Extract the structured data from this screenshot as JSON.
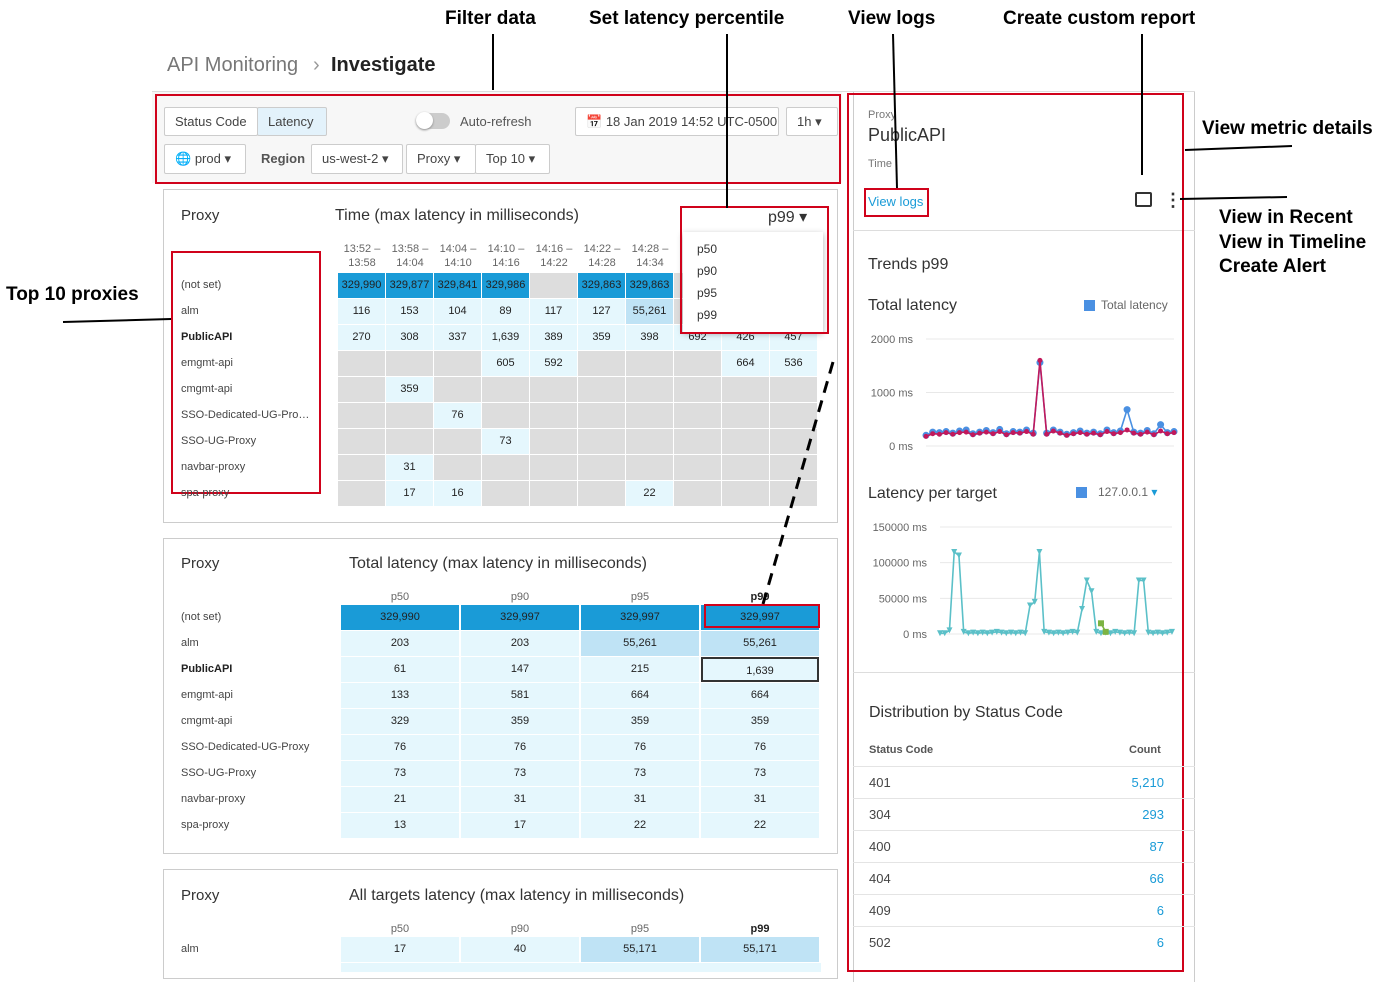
{
  "annotations": [
    "Filter data",
    "Set latency percentile",
    "View logs",
    "Create custom report",
    "View metric details",
    "View in Recent",
    "View in Timeline",
    "Create Alert",
    "Top 10 proxies"
  ],
  "breadcrumb": {
    "parent": "API Monitoring",
    "current": "Investigate"
  },
  "filters": {
    "tabs": [
      "Status Code",
      "Latency"
    ],
    "auto_refresh": "Auto-refresh",
    "date": "18 Jan 2019 14:52 UTC-0500",
    "range": "1h",
    "environment": "prod",
    "region_label": "Region",
    "region": "us-west-2",
    "dimension": "Proxy",
    "top": "Top 10"
  },
  "heatmap": {
    "row_header": "Proxy",
    "title": "Time (max latency in milliseconds)",
    "percentile": "p99",
    "percentile_options": [
      "p50",
      "p90",
      "p95",
      "p99"
    ],
    "columns": [
      "13:52 – 13:58",
      "13:58 – 14:04",
      "14:04 – 14:10",
      "14:10 – 14:16",
      "14:16 – 14:22",
      "14:22 – 14:28",
      "14:28 – 14:34",
      null,
      null,
      null
    ],
    "rows": [
      {
        "label": "(not set)",
        "cells": [
          "329,990",
          "329,877",
          "329,841",
          "329,986",
          null,
          "329,863",
          "329,863",
          null,
          null,
          null
        ]
      },
      {
        "label": "alm",
        "cells": [
          "116",
          "153",
          "104",
          "89",
          "117",
          "127",
          "55,261",
          null,
          null,
          null
        ]
      },
      {
        "label": "PublicAPI",
        "cells": [
          "270",
          "308",
          "337",
          "1,639",
          "389",
          "359",
          "398",
          "692",
          "426",
          "457"
        ]
      },
      {
        "label": "emgmt-api",
        "cells": [
          null,
          null,
          null,
          "605",
          "592",
          null,
          null,
          null,
          "664",
          "536"
        ]
      },
      {
        "label": "cmgmt-api",
        "cells": [
          null,
          "359",
          null,
          null,
          null,
          null,
          null,
          null,
          null,
          null
        ]
      },
      {
        "label": "SSO-Dedicated-UG-Pro…",
        "cells": [
          null,
          null,
          "76",
          null,
          null,
          null,
          null,
          null,
          null,
          null
        ]
      },
      {
        "label": "SSO-UG-Proxy",
        "cells": [
          null,
          null,
          null,
          "73",
          null,
          null,
          null,
          null,
          null,
          null
        ]
      },
      {
        "label": "navbar-proxy",
        "cells": [
          null,
          "31",
          null,
          null,
          null,
          null,
          null,
          null,
          null,
          null
        ]
      },
      {
        "label": "spa-proxy",
        "cells": [
          null,
          "17",
          "16",
          null,
          null,
          null,
          "22",
          null,
          null,
          null
        ]
      }
    ]
  },
  "total_latency": {
    "row_header": "Proxy",
    "title": "Total latency (max latency in milliseconds)",
    "columns": [
      "p50",
      "p90",
      "p95",
      "p99"
    ],
    "rows": [
      {
        "label": "(not set)",
        "cells": [
          "329,990",
          "329,997",
          "329,997",
          "329,997"
        ]
      },
      {
        "label": "alm",
        "cells": [
          "203",
          "203",
          "55,261",
          "55,261"
        ]
      },
      {
        "label": "PublicAPI",
        "cells": [
          "61",
          "147",
          "215",
          "1,639"
        ]
      },
      {
        "label": "emgmt-api",
        "cells": [
          "133",
          "581",
          "664",
          "664"
        ]
      },
      {
        "label": "cmgmt-api",
        "cells": [
          "329",
          "359",
          "359",
          "359"
        ]
      },
      {
        "label": "SSO-Dedicated-UG-Proxy",
        "cells": [
          "76",
          "76",
          "76",
          "76"
        ]
      },
      {
        "label": "SSO-UG-Proxy",
        "cells": [
          "73",
          "73",
          "73",
          "73"
        ]
      },
      {
        "label": "navbar-proxy",
        "cells": [
          "21",
          "31",
          "31",
          "31"
        ]
      },
      {
        "label": "spa-proxy",
        "cells": [
          "13",
          "17",
          "22",
          "22"
        ]
      }
    ]
  },
  "targets_latency": {
    "row_header": "Proxy",
    "title": "All targets latency (max latency in milliseconds)",
    "columns": [
      "p50",
      "p90",
      "p95",
      "p99"
    ],
    "rows": [
      {
        "label": "alm",
        "cells": [
          "17",
          "40",
          "55,171",
          "55,171"
        ]
      }
    ]
  },
  "panel": {
    "proxy_label": "Proxy",
    "proxy": "PublicAPI",
    "time_label": "Time",
    "view_logs": "View logs",
    "trends_title": "Trends p99",
    "total_chart": {
      "type": "line",
      "title": "Total latency",
      "ylim": [
        0,
        2000
      ],
      "yticks": [
        {
          "value": 0,
          "label": "0 ms"
        },
        {
          "value": 1000,
          "label": "1000 ms"
        },
        {
          "value": 2000,
          "label": "2000 ms"
        }
      ],
      "series": [
        {
          "name": "Total latency",
          "color": "#4a90e2",
          "values": [
            200,
            260,
            250,
            270,
            240,
            280,
            300,
            230,
            260,
            290,
            250,
            310,
            230,
            270,
            260,
            300,
            240,
            1560,
            240,
            300,
            260,
            220,
            250,
            280,
            240,
            260,
            230,
            300,
            250,
            280,
            680,
            260,
            240,
            290,
            230,
            400,
            250,
            270
          ]
        },
        {
          "name": null,
          "color": "#c2185b",
          "values": [
            180,
            230,
            220,
            250,
            220,
            250,
            260,
            210,
            240,
            260,
            230,
            270,
            210,
            250,
            240,
            270,
            220,
            1600,
            220,
            280,
            240,
            200,
            230,
            250,
            220,
            240,
            210,
            270,
            230,
            250,
            300,
            240,
            220,
            260,
            210,
            280,
            230,
            250
          ]
        }
      ]
    },
    "target_chart": {
      "type": "line",
      "title": "Latency per target",
      "legend": "127.0.0.1",
      "ylim": [
        0,
        150000
      ],
      "yticks": [
        {
          "value": 0,
          "label": "0 ms"
        },
        {
          "value": 50000,
          "label": "50000 ms"
        },
        {
          "value": 100000,
          "label": "100000 ms"
        },
        {
          "value": 150000,
          "label": "150000 ms"
        }
      ],
      "series": [
        {
          "name": "127.0.0.1",
          "color": "#5bc0c8",
          "values": [
            1000,
            1000,
            5000,
            115000,
            110000,
            3000,
            1000,
            2000,
            1000,
            2000,
            1000,
            2000,
            3000,
            2000,
            1000,
            2000,
            1000,
            2000,
            1000,
            40000,
            45000,
            115000,
            3000,
            2000,
            1000,
            2000,
            1000,
            2000,
            3000,
            2000,
            35000,
            75000,
            60000,
            3000,
            1000,
            2000,
            1000,
            3000,
            2000,
            1000,
            2000,
            1000,
            75000,
            75000,
            2000,
            1000,
            2000,
            1000,
            2000,
            3000
          ]
        },
        {
          "name": null,
          "color": "#7cb342",
          "values": [
            null,
            null,
            null,
            null,
            null,
            null,
            null,
            null,
            null,
            null,
            null,
            null,
            null,
            null,
            null,
            null,
            null,
            null,
            null,
            null,
            null,
            null,
            null,
            null,
            null,
            null,
            null,
            null,
            null,
            null,
            null,
            null,
            null,
            null,
            15000,
            3000,
            null,
            null,
            null,
            null,
            null,
            null,
            null,
            null,
            null,
            null,
            null,
            null,
            null,
            null
          ]
        }
      ]
    },
    "distribution": {
      "title": "Distribution by Status Code",
      "headers": [
        "Status Code",
        "Count"
      ],
      "rows": [
        [
          "401",
          "5,210"
        ],
        [
          "304",
          "293"
        ],
        [
          "400",
          "87"
        ],
        [
          "404",
          "66"
        ],
        [
          "409",
          "6"
        ],
        [
          "502",
          "6"
        ]
      ]
    }
  }
}
